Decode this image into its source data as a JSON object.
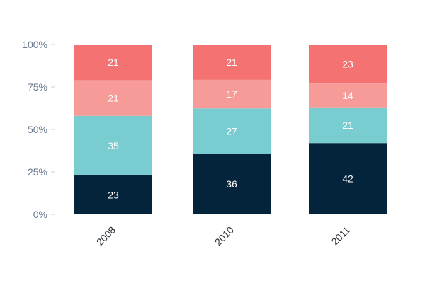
{
  "chart_data": {
    "type": "bar",
    "stacked": true,
    "percent_stacked": true,
    "categories": [
      "2008",
      "2010",
      "2011"
    ],
    "series": [
      {
        "values": [
          23,
          36,
          42
        ],
        "color": "#03243a"
      },
      {
        "values": [
          35,
          27,
          21
        ],
        "color": "#79cdd0"
      },
      {
        "values": [
          21,
          17,
          14
        ],
        "color": "#f79b98"
      },
      {
        "values": [
          21,
          21,
          23
        ],
        "color": "#f47272"
      }
    ],
    "y_ticks": [
      "0%",
      "25%",
      "50%",
      "75%",
      "100%"
    ],
    "ylim": [
      0,
      100
    ],
    "legend": "none",
    "grid": false
  }
}
